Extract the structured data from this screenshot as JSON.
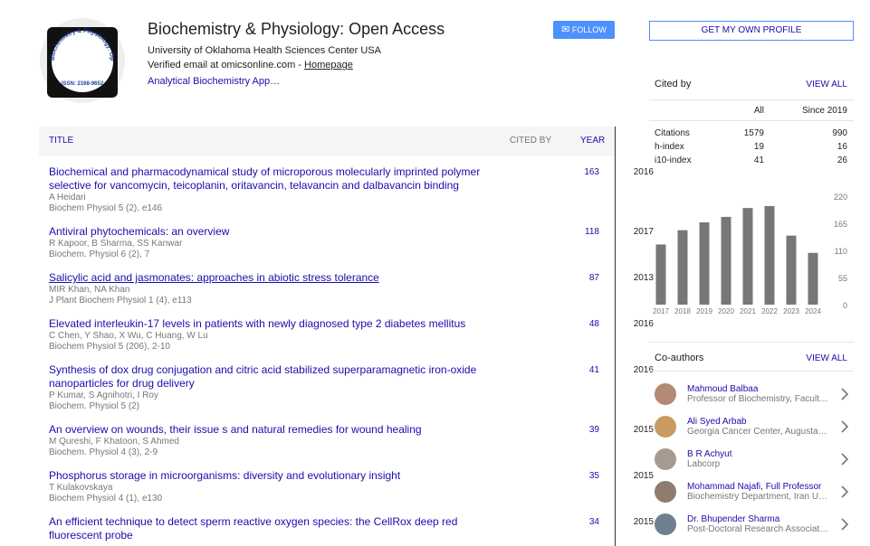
{
  "profile": {
    "logo_arc": "Biochemistry & Physiology: Open Access",
    "logo_issn": "ISSN: 2168-9652",
    "name": "Biochemistry & Physiology: Open Access",
    "affiliation": "University of Oklahoma Health Sciences Center USA",
    "email": "Verified email at omicsonline.com - ",
    "homepage": "Homepage",
    "interest": "Analytical Biochemistry App…",
    "follow": "FOLLOW"
  },
  "table": {
    "headers": {
      "title": "TITLE",
      "cited_by": "CITED BY",
      "year": "YEAR"
    },
    "rows": [
      {
        "title": "Biochemical and pharmacodynamical study of microporous molecularly imprinted polymer selective for vancomycin, teicoplanin, oritavancin, telavancin and dalbavancin binding",
        "authors": "A Heidari",
        "venue": "Biochem Physiol 5 (2), e146",
        "cited_by": "163",
        "year": "2016"
      },
      {
        "title": "Antiviral phytochemicals: an overview",
        "authors": "R Kapoor, B Sharma, SS Kanwar",
        "venue": "Biochem. Physiol 6 (2), 7",
        "cited_by": "118",
        "year": "2017"
      },
      {
        "title": "Salicylic acid and jasmonates: approaches in abiotic stress tolerance",
        "authors": "MIR Khan, NA Khan",
        "venue": "J Plant Biochem Physiol 1 (4), e113",
        "cited_by": "87",
        "year": "2013"
      },
      {
        "title": "Elevated interleukin-17 levels in patients with newly diagnosed type 2 diabetes mellitus",
        "authors": "C Chen, Y Shao, X Wu, C Huang, W Lu",
        "venue": "Biochem Physiol 5 (206), 2-10",
        "cited_by": "48",
        "year": "2016"
      },
      {
        "title": "Synthesis of dox drug conjugation and citric acid stabilized superparamagnetic iron-oxide nanoparticles for drug delivery",
        "authors": "P Kumar, S Agnihotri, I Roy",
        "venue": "Biochem. Physiol 5 (2)",
        "cited_by": "41",
        "year": "2016"
      },
      {
        "title": "An overview on wounds, their issue s and natural remedies for wound healing",
        "authors": "M Qureshi, F Khatoon, S Ahmed",
        "venue": "Biochem. Physiol 4 (3), 2-9",
        "cited_by": "39",
        "year": "2015"
      },
      {
        "title": "Phosphorus storage in microorganisms: diversity and evolutionary insight",
        "authors": "T Kulakovskaya",
        "venue": "Biochem Physiol 4 (1), e130",
        "cited_by": "35",
        "year": "2015"
      },
      {
        "title": "An efficient technique to detect sperm reactive oxygen species: the CellRox deep red fluorescent probe",
        "cited_by": "34",
        "year": "2015"
      }
    ]
  },
  "sidebar": {
    "get_profile": "GET MY OWN PROFILE",
    "cited_by_heading": "Cited by",
    "view_all": "VIEW ALL",
    "col_all": "All",
    "col_since": "Since 2019",
    "metrics": [
      {
        "label": "Citations",
        "all": "1579",
        "since": "990"
      },
      {
        "label": "h-index",
        "all": "19",
        "since": "16"
      },
      {
        "label": "i10-index",
        "all": "41",
        "since": "26"
      }
    ],
    "coauthors_heading": "Co-authors",
    "coauthors": [
      {
        "name": "Mahmoud Balbaa",
        "affiliation": "Professor of Biochemistry, Facult…"
      },
      {
        "name": "Ali Syed Arbab",
        "affiliation": "Georgia Cancer Center, Augusta…"
      },
      {
        "name": "B R Achyut",
        "affiliation": "Labcorp"
      },
      {
        "name": "Mohammad Najafi, Full Professor",
        "affiliation": "Biochemistry Department, Iran U…"
      },
      {
        "name": "Dr. Bhupender Sharma",
        "affiliation": "Post-Doctoral Research Associat…"
      }
    ]
  },
  "chart_data": {
    "type": "bar",
    "categories": [
      "2017",
      "2018",
      "2019",
      "2020",
      "2021",
      "2022",
      "2023",
      "2024"
    ],
    "values": [
      122,
      151,
      167,
      178,
      196,
      200,
      140,
      105
    ],
    "color": "#777777",
    "ylim": [
      0,
      220
    ],
    "yticks": [
      0,
      55,
      110,
      165,
      220
    ]
  }
}
